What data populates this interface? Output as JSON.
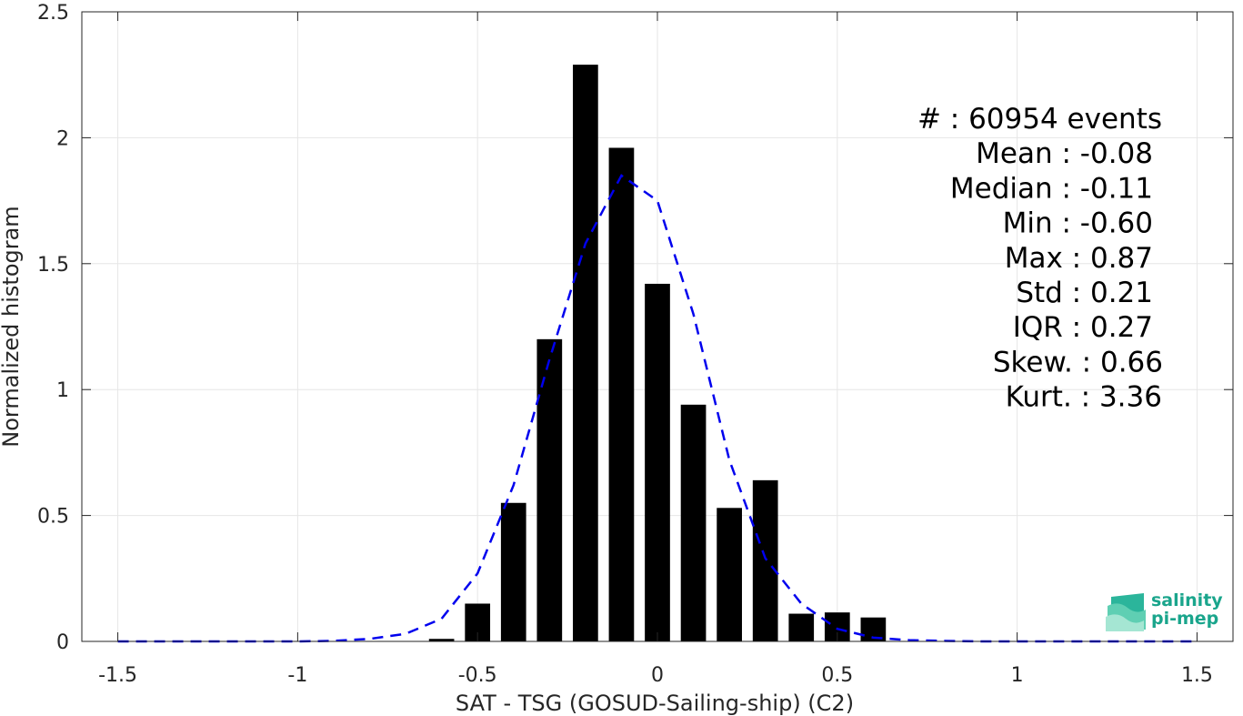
{
  "chart_data": {
    "type": "bar",
    "xlabel": "SAT - TSG (GOSUD-Sailing-ship) (C2)",
    "ylabel": "Normalized histogram",
    "xlim": [
      -1.6,
      1.6
    ],
    "ylim": [
      0,
      2.5
    ],
    "grid": true,
    "x_ticks": [
      -1.5,
      -1,
      -0.5,
      0,
      0.5,
      1,
      1.5
    ],
    "x_tick_labels": [
      "-1.5",
      "-1",
      "-0.5",
      "0",
      "0.5",
      "1",
      "1.5"
    ],
    "y_ticks": [
      0,
      0.5,
      1,
      1.5,
      2,
      2.5
    ],
    "y_tick_labels": [
      "0",
      "0.5",
      "1",
      "1.5",
      "2",
      "2.5"
    ],
    "bar_width": 0.07,
    "bars": {
      "x": [
        -0.6,
        -0.5,
        -0.4,
        -0.3,
        -0.2,
        -0.1,
        0.0,
        0.1,
        0.2,
        0.3,
        0.4,
        0.5,
        0.6
      ],
      "y": [
        0.01,
        0.15,
        0.55,
        1.2,
        2.29,
        1.96,
        1.42,
        0.94,
        0.53,
        0.64,
        0.11,
        0.115,
        0.095
      ],
      "color": "#000000"
    },
    "fit_curve": {
      "style": "dashed",
      "color": "#0000ee",
      "x": [
        -1.5,
        -1.4,
        -1.3,
        -1.2,
        -1.1,
        -1.0,
        -0.9,
        -0.8,
        -0.7,
        -0.6,
        -0.5,
        -0.4,
        -0.3,
        -0.2,
        -0.1,
        0.0,
        0.1,
        0.2,
        0.3,
        0.4,
        0.5,
        0.6,
        0.7,
        0.8,
        0.9,
        1.0,
        1.1,
        1.2,
        1.3,
        1.4,
        1.5
      ],
      "y": [
        0,
        0,
        0,
        0,
        0,
        0,
        0.002,
        0.01,
        0.03,
        0.09,
        0.27,
        0.62,
        1.12,
        1.58,
        1.85,
        1.75,
        1.3,
        0.72,
        0.33,
        0.15,
        0.05,
        0.015,
        0.005,
        0.002,
        0,
        0,
        0,
        0,
        0,
        0,
        0
      ]
    },
    "stats": [
      "#  : 60954 events",
      "Mean : -0.08",
      "Median : -0.11",
      "Min : -0.60",
      "Max : 0.87",
      "Std : 0.21",
      "IQR : 0.27",
      "Skew. : 0.66",
      "Kurt. : 3.36"
    ]
  },
  "logo": {
    "line1": "salinity",
    "line2": "pi-mep",
    "color": "#1aa58c"
  }
}
